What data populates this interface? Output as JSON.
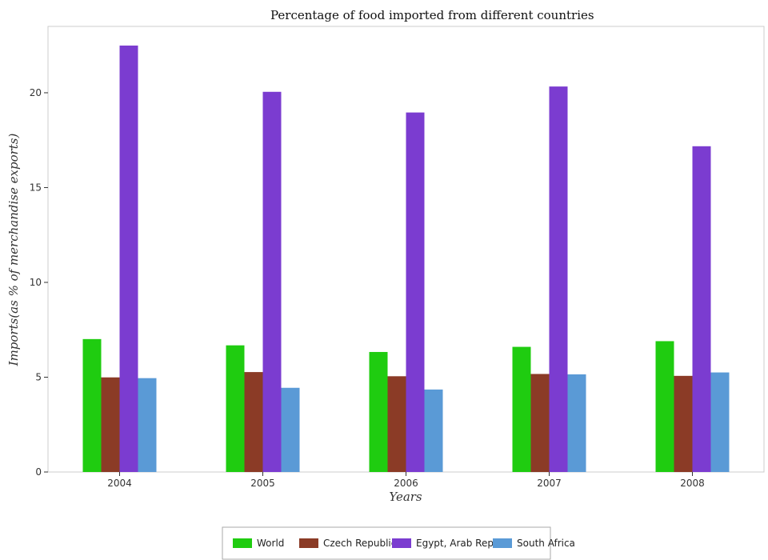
{
  "chart_data": {
    "type": "bar",
    "title": "Percentage of food imported from different countries",
    "xlabel": "Years",
    "ylabel": "Imports(as % of merchandise exports)",
    "categories": [
      "2004",
      "2005",
      "2006",
      "2007",
      "2008"
    ],
    "ylim": [
      0,
      23.5
    ],
    "yticks": [
      "0",
      "5",
      "10",
      "15",
      "20"
    ],
    "series": [
      {
        "name": "World",
        "color": "#1fcc10",
        "values": [
          7.01,
          6.68,
          6.33,
          6.6,
          6.9
        ]
      },
      {
        "name": "Czech Republic",
        "color": "#8b3b26",
        "values": [
          4.99,
          5.27,
          5.05,
          5.17,
          5.07
        ]
      },
      {
        "name": "Egypt, Arab Rep.",
        "color": "#7b3cd0",
        "values": [
          22.49,
          20.05,
          18.96,
          20.33,
          17.18
        ]
      },
      {
        "name": "South Africa",
        "color": "#5a9ad6",
        "values": [
          4.95,
          4.44,
          4.35,
          5.15,
          5.25
        ]
      }
    ],
    "grid": false,
    "legend_position": "bottom"
  }
}
